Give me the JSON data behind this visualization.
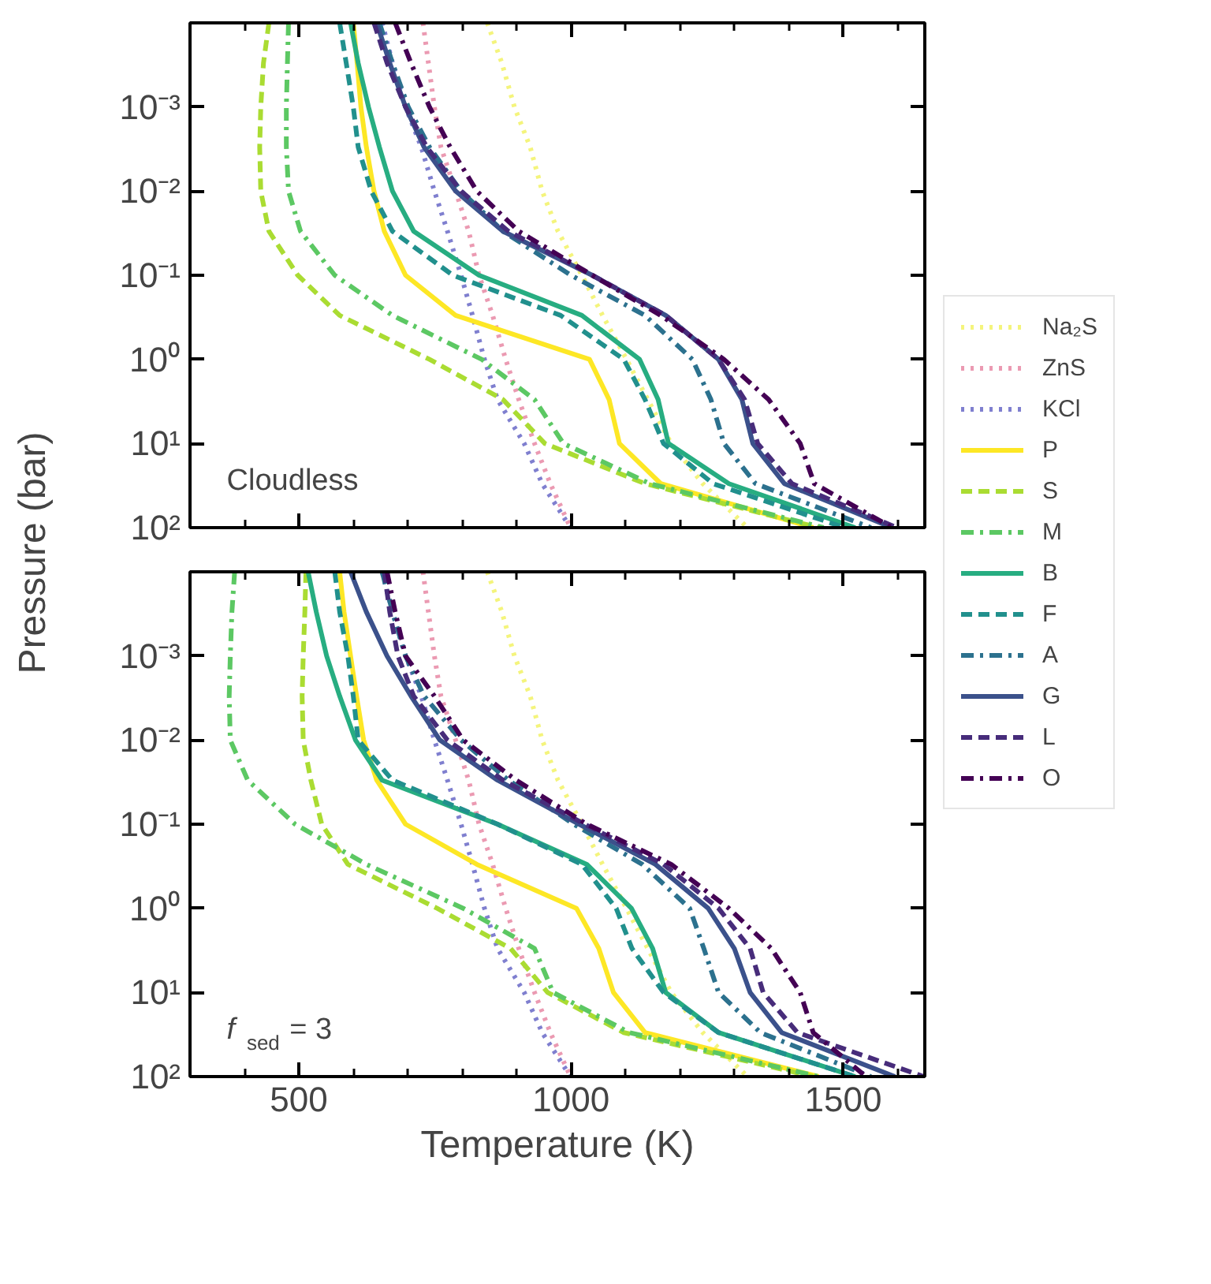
{
  "chart_data": [
    {
      "type": "line",
      "ylabel": "Pressure (bar)",
      "log": "y",
      "xlim": [
        300,
        1650
      ],
      "ylim": [
        100,
        0.0001
      ],
      "tick_labels": "y",
      "legend": "right",
      "xticks": [
        {
          "value": 400,
          "label": null
        },
        500,
        {
          "value": 600,
          "label": null
        },
        {
          "value": 700,
          "label": null
        },
        {
          "value": 800,
          "label": null
        },
        {
          "value": 900,
          "label": null
        },
        1000,
        {
          "value": 1100,
          "label": null
        },
        {
          "value": 1200,
          "label": null
        },
        {
          "value": 1300,
          "label": null
        },
        {
          "value": 1400,
          "label": null
        },
        1500,
        {
          "value": 1600,
          "label": null
        }
      ],
      "yticks": [
        {
          "value": 0.001,
          "label": "10⁻³"
        },
        {
          "value": 0.01,
          "label": "10⁻²"
        },
        {
          "value": 0.1,
          "label": "10⁻¹"
        },
        {
          "value": 1,
          "label": "10⁰"
        },
        {
          "value": 10,
          "label": "10¹"
        },
        {
          "value": 100,
          "label": "10²"
        }
      ],
      "annotations": [
        "Cloudless"
      ],
      "series": [
        {
          "name": "Na₂S",
          "color": "#f4f47c",
          "line_style": "dotted",
          "x": [
            846,
            873,
            896,
            925,
            947,
            976,
            1020,
            1058,
            1102,
            1141,
            1184,
            1242,
            1324
          ],
          "values": [
            0.0001,
            0.0003,
            0.001,
            0.003,
            0.01,
            0.03,
            0.1,
            0.3,
            1,
            3,
            10,
            30,
            100
          ]
        },
        {
          "name": "ZnS",
          "color": "#eb9ab2",
          "line_style": "dotted",
          "x": [
            728,
            738,
            749,
            761,
            788,
            812,
            831,
            856,
            880,
            904,
            933,
            962,
            999
          ],
          "values": [
            0.0001,
            0.0003,
            0.001,
            0.003,
            0.01,
            0.03,
            0.1,
            0.3,
            1,
            3,
            10,
            30,
            100
          ]
        },
        {
          "name": "KCl",
          "color": "#7f7fcf",
          "line_style": "dotted",
          "x": [
            653,
            672,
            696,
            725,
            749,
            773,
            798,
            819,
            841,
            865,
            914,
            947,
            999
          ],
          "values": [
            0.0001,
            0.0003,
            0.001,
            0.003,
            0.01,
            0.03,
            0.1,
            0.3,
            1,
            3,
            10,
            30,
            100
          ]
        },
        {
          "name": "P",
          "color": "#fde725",
          "line_style": "solid",
          "x": [
            600,
            607,
            614,
            624,
            638,
            657,
            696,
            788,
            1034,
            1070,
            1089,
            1165,
            1445
          ],
          "values": [
            0.0001,
            0.0003,
            0.001,
            0.003,
            0.01,
            0.03,
            0.1,
            0.3,
            1,
            3,
            10,
            30,
            100
          ]
        },
        {
          "name": "S",
          "color": "#aadc32",
          "line_style": "dashed",
          "x": [
            445,
            435,
            430,
            428,
            430,
            445,
            498,
            575,
            740,
            875,
            952,
            1136,
            1455
          ],
          "values": [
            0.0001,
            0.0003,
            0.001,
            0.003,
            0.01,
            0.03,
            0.1,
            0.3,
            1,
            3,
            10,
            30,
            100
          ]
        },
        {
          "name": "M",
          "color": "#5cc863",
          "line_style": "dashdot",
          "x": [
            481,
            479,
            477,
            477,
            481,
            503,
            566,
            672,
            836,
            933,
            986,
            1145,
            1464
          ],
          "values": [
            0.0001,
            0.0003,
            0.001,
            0.003,
            0.01,
            0.03,
            0.1,
            0.3,
            1,
            3,
            10,
            30,
            100
          ]
        },
        {
          "name": "B",
          "color": "#27ad81",
          "line_style": "solid",
          "x": [
            595,
            609,
            628,
            648,
            672,
            711,
            831,
            1020,
            1126,
            1160,
            1179,
            1290,
            1522
          ],
          "values": [
            0.0001,
            0.0003,
            0.001,
            0.003,
            0.01,
            0.03,
            0.1,
            0.3,
            1,
            3,
            10,
            30,
            100
          ]
        },
        {
          "name": "F",
          "color": "#21908d",
          "line_style": "dashed",
          "x": [
            575,
            587,
            600,
            609,
            633,
            672,
            783,
            981,
            1097,
            1136,
            1170,
            1261,
            1503
          ],
          "values": [
            0.0001,
            0.0003,
            0.001,
            0.003,
            0.01,
            0.03,
            0.1,
            0.3,
            1,
            3,
            10,
            30,
            100
          ]
        },
        {
          "name": "A",
          "color": "#2c718e",
          "line_style": "dashdot",
          "x": [
            648,
            672,
            701,
            740,
            798,
            875,
            1000,
            1136,
            1223,
            1257,
            1281,
            1339,
            1551
          ],
          "values": [
            0.0001,
            0.0003,
            0.001,
            0.003,
            0.01,
            0.03,
            0.1,
            0.3,
            1,
            3,
            10,
            30,
            100
          ]
        },
        {
          "name": "G",
          "color": "#3b518b",
          "line_style": "solid",
          "x": [
            643,
            667,
            696,
            730,
            788,
            875,
            1039,
            1174,
            1271,
            1314,
            1334,
            1392,
            1590
          ],
          "values": [
            0.0001,
            0.0003,
            0.001,
            0.003,
            0.01,
            0.03,
            0.1,
            0.3,
            1,
            3,
            10,
            30,
            100
          ]
        },
        {
          "name": "L",
          "color": "#472c7a",
          "line_style": "dashed",
          "x": [
            638,
            662,
            696,
            735,
            798,
            885,
            1039,
            1174,
            1271,
            1319,
            1343,
            1406,
            1599
          ],
          "values": [
            0.0001,
            0.0003,
            0.001,
            0.003,
            0.01,
            0.03,
            0.1,
            0.3,
            1,
            3,
            10,
            30,
            100
          ]
        },
        {
          "name": "O",
          "color": "#440154",
          "line_style": "dashdot",
          "x": [
            677,
            706,
            740,
            778,
            827,
            904,
            1039,
            1165,
            1281,
            1363,
            1421,
            1447,
            1590
          ],
          "values": [
            0.0001,
            0.0003,
            0.001,
            0.003,
            0.01,
            0.03,
            0.1,
            0.3,
            1,
            3,
            10,
            30,
            100
          ]
        }
      ]
    },
    {
      "type": "line",
      "xlabel": "Temperature (K)",
      "log": "y",
      "xlim": [
        300,
        1650
      ],
      "ylim": [
        100,
        0.0001
      ],
      "xticks": [
        {
          "value": 400,
          "label": null
        },
        500,
        {
          "value": 600,
          "label": null
        },
        {
          "value": 700,
          "label": null
        },
        {
          "value": 800,
          "label": null
        },
        {
          "value": 900,
          "label": null
        },
        1000,
        {
          "value": 1100,
          "label": null
        },
        {
          "value": 1200,
          "label": null
        },
        {
          "value": 1300,
          "label": null
        },
        {
          "value": 1400,
          "label": null
        },
        1500,
        {
          "value": 1600,
          "label": null
        }
      ],
      "yticks": [
        {
          "value": 0.001,
          "label": "10⁻³"
        },
        {
          "value": 0.01,
          "label": "10⁻²"
        },
        {
          "value": 0.1,
          "label": "10⁻¹"
        },
        {
          "value": 1,
          "label": "10⁰"
        },
        {
          "value": 10,
          "label": "10¹"
        },
        {
          "value": 100,
          "label": "10²"
        }
      ],
      "annotations": [
        "f$_{sed}$ = 3"
      ],
      "series": [
        {
          "color": "#f4f47c",
          "line_style": "dotted",
          "x": [
            846,
            873,
            896,
            925,
            947,
            976,
            1020,
            1058,
            1102,
            1141,
            1184,
            1242,
            1324
          ],
          "values": [
            0.0001,
            0.0003,
            0.001,
            0.003,
            0.01,
            0.03,
            0.1,
            0.3,
            1,
            3,
            10,
            30,
            100
          ]
        },
        {
          "color": "#eb9ab2",
          "line_style": "dotted",
          "x": [
            728,
            738,
            749,
            761,
            788,
            812,
            831,
            856,
            880,
            904,
            933,
            962,
            999
          ],
          "values": [
            0.0001,
            0.0003,
            0.001,
            0.003,
            0.01,
            0.03,
            0.1,
            0.3,
            1,
            3,
            10,
            30,
            100
          ]
        },
        {
          "color": "#7f7fcf",
          "line_style": "dotted",
          "x": [
            653,
            672,
            696,
            725,
            749,
            773,
            798,
            819,
            841,
            865,
            914,
            947,
            999
          ],
          "values": [
            0.0001,
            0.0003,
            0.001,
            0.003,
            0.01,
            0.03,
            0.1,
            0.3,
            1,
            3,
            10,
            30,
            100
          ]
        },
        {
          "color": "#fde725",
          "line_style": "solid",
          "x": [
            575,
            583,
            595,
            606,
            619,
            643,
            696,
            827,
            1010,
            1051,
            1078,
            1136,
            1455
          ],
          "values": [
            0.0001,
            0.0003,
            0.001,
            0.003,
            0.01,
            0.03,
            0.1,
            0.3,
            1,
            3,
            10,
            30,
            100
          ]
        },
        {
          "color": "#aadc32",
          "line_style": "dashed",
          "x": [
            513,
            511,
            508,
            506,
            508,
            522,
            542,
            590,
            754,
            889,
            957,
            1097,
            1445
          ],
          "values": [
            0.0001,
            0.0003,
            0.001,
            0.003,
            0.01,
            0.03,
            0.1,
            0.3,
            1,
            3,
            10,
            30,
            100
          ]
        },
        {
          "color": "#5cc863",
          "line_style": "dashdot",
          "x": [
            382,
            377,
            374,
            372,
            374,
            406,
            493,
            624,
            802,
            933,
            967,
            1107,
            1455
          ],
          "values": [
            0.0001,
            0.0003,
            0.001,
            0.003,
            0.01,
            0.03,
            0.1,
            0.3,
            1,
            3,
            10,
            30,
            100
          ]
        },
        {
          "color": "#27ad81",
          "line_style": "solid",
          "x": [
            517,
            532,
            551,
            575,
            604,
            653,
            865,
            1029,
            1111,
            1150,
            1174,
            1271,
            1522
          ],
          "values": [
            0.0001,
            0.0003,
            0.001,
            0.003,
            0.01,
            0.03,
            0.1,
            0.3,
            1,
            3,
            10,
            30,
            100
          ]
        },
        {
          "color": "#21908d",
          "line_style": "dashed",
          "x": [
            566,
            575,
            590,
            600,
            609,
            672,
            865,
            1020,
            1083,
            1112,
            1170,
            1271,
            1522
          ],
          "values": [
            0.0001,
            0.0003,
            0.001,
            0.003,
            0.01,
            0.03,
            0.1,
            0.3,
            1,
            3,
            10,
            30,
            100
          ]
        },
        {
          "color": "#2c718e",
          "line_style": "dashdot",
          "x": [
            653,
            672,
            696,
            730,
            798,
            885,
            1005,
            1131,
            1218,
            1244,
            1271,
            1348,
            1551
          ],
          "values": [
            0.0001,
            0.0003,
            0.001,
            0.003,
            0.01,
            0.03,
            0.1,
            0.3,
            1,
            3,
            10,
            30,
            100
          ]
        },
        {
          "color": "#3b518b",
          "line_style": "solid",
          "x": [
            595,
            624,
            662,
            706,
            759,
            865,
            1015,
            1155,
            1252,
            1300,
            1329,
            1387,
            1595
          ],
          "values": [
            0.0001,
            0.0003,
            0.001,
            0.003,
            0.01,
            0.03,
            0.1,
            0.3,
            1,
            3,
            10,
            30,
            100
          ]
        },
        {
          "color": "#472c7a",
          "line_style": "dashed",
          "x": [
            657,
            667,
            682,
            711,
            773,
            875,
            1025,
            1170,
            1271,
            1329,
            1353,
            1416,
            1648
          ],
          "values": [
            0.0001,
            0.0003,
            0.001,
            0.003,
            0.01,
            0.03,
            0.1,
            0.3,
            1,
            3,
            10,
            30,
            100
          ]
        },
        {
          "color": "#440154",
          "line_style": "dashdot",
          "x": [
            662,
            677,
            696,
            749,
            802,
            899,
            1029,
            1184,
            1290,
            1368,
            1421,
            1445,
            1542
          ],
          "values": [
            0.0001,
            0.0003,
            0.001,
            0.003,
            0.01,
            0.03,
            0.1,
            0.3,
            1,
            3,
            10,
            30,
            100
          ]
        }
      ]
    }
  ]
}
